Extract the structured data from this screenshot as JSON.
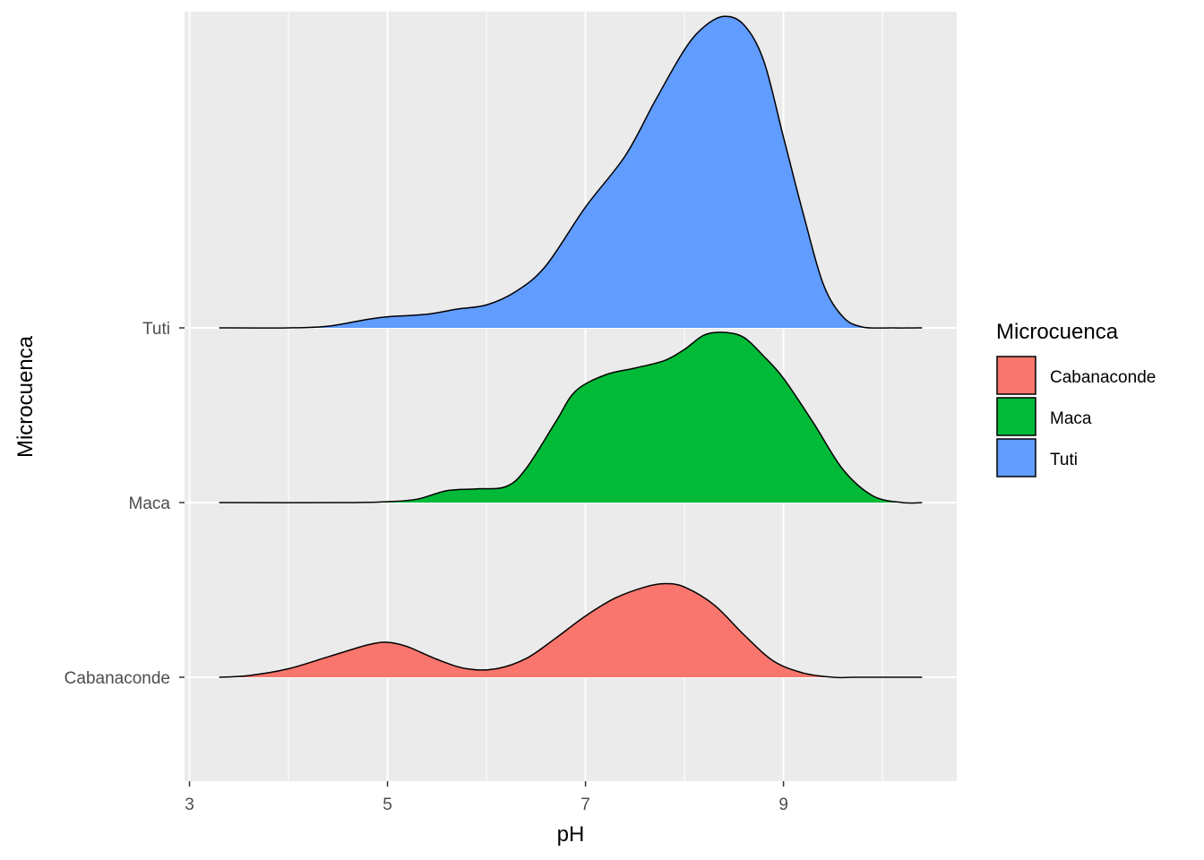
{
  "chart_data": {
    "type": "area",
    "subtype": "ridgeline-density",
    "xlabel": "pH",
    "ylabel": "Microcuenca",
    "xlim": [
      2.95,
      10.75
    ],
    "x_ticks": [
      3,
      5,
      7,
      9
    ],
    "x_tick_labels": [
      "3",
      "5",
      "7",
      "9"
    ],
    "categories": [
      "Cabanaconde",
      "Maca",
      "Tuti"
    ],
    "grid": true,
    "legend": {
      "title": "Microcuenca",
      "position": "right"
    },
    "series": [
      {
        "name": "Cabanaconde",
        "color": "#F8766D",
        "x": [
          3.3,
          3.6,
          4.0,
          4.4,
          4.8,
          5.0,
          5.2,
          5.5,
          5.8,
          6.1,
          6.4,
          6.7,
          7.0,
          7.3,
          7.6,
          7.8,
          8.0,
          8.3,
          8.6,
          8.9,
          9.2,
          9.5,
          9.7,
          10.0,
          10.4
        ],
        "density": [
          0.0,
          0.02,
          0.1,
          0.24,
          0.38,
          0.41,
          0.36,
          0.21,
          0.1,
          0.1,
          0.22,
          0.46,
          0.72,
          0.93,
          1.06,
          1.1,
          1.06,
          0.85,
          0.5,
          0.19,
          0.05,
          0.0,
          0.0,
          0.0,
          0.0
        ]
      },
      {
        "name": "Maca",
        "color": "#00BA38",
        "x": [
          3.3,
          4.6,
          5.0,
          5.3,
          5.6,
          5.9,
          6.2,
          6.4,
          6.7,
          6.9,
          7.2,
          7.5,
          7.8,
          8.0,
          8.2,
          8.4,
          8.6,
          8.8,
          9.0,
          9.3,
          9.6,
          9.9,
          10.2,
          10.4
        ],
        "density": [
          0.0,
          0.0,
          0.01,
          0.04,
          0.14,
          0.16,
          0.19,
          0.4,
          0.95,
          1.31,
          1.5,
          1.58,
          1.67,
          1.8,
          1.97,
          2.0,
          1.94,
          1.72,
          1.46,
          0.94,
          0.39,
          0.08,
          0.0,
          0.0
        ]
      },
      {
        "name": "Tuti",
        "color": "#619CFF",
        "x": [
          3.3,
          4.0,
          4.4,
          4.8,
          5.0,
          5.4,
          5.7,
          6.0,
          6.3,
          6.6,
          7.0,
          7.4,
          7.7,
          8.0,
          8.2,
          8.4,
          8.6,
          8.8,
          9.0,
          9.2,
          9.4,
          9.6,
          9.8,
          10.1,
          10.4
        ],
        "density": [
          0.0,
          0.0,
          0.02,
          0.1,
          0.13,
          0.16,
          0.22,
          0.27,
          0.43,
          0.73,
          1.42,
          2.02,
          2.66,
          3.27,
          3.54,
          3.66,
          3.56,
          3.14,
          2.24,
          1.34,
          0.52,
          0.13,
          0.01,
          0.0,
          0.0
        ]
      }
    ]
  }
}
